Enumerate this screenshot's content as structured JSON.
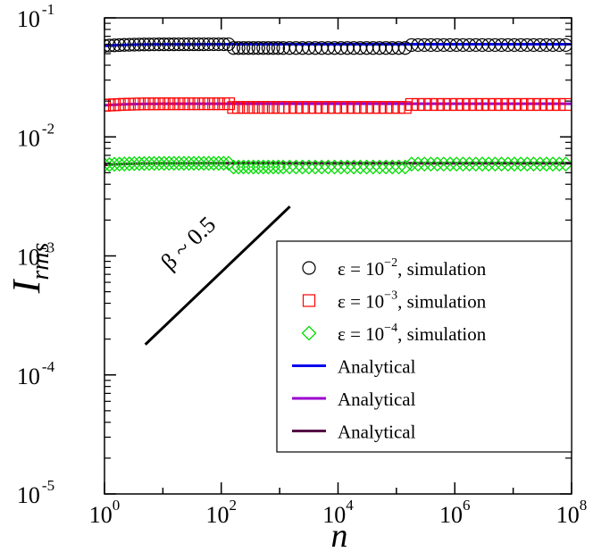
{
  "chart_data": {
    "type": "scatter",
    "xlabel": "n",
    "ylabel": "I",
    "ylabel_subscript": "rms",
    "x_scale": "log",
    "y_scale": "log",
    "xlim": [
      1,
      100000000
    ],
    "ylim": [
      1e-05,
      0.1
    ],
    "x_ticks": [
      {
        "value": 1,
        "base": "10",
        "exp": "0"
      },
      {
        "value": 100,
        "base": "10",
        "exp": "2"
      },
      {
        "value": 10000,
        "base": "10",
        "exp": "4"
      },
      {
        "value": 1000000,
        "base": "10",
        "exp": "6"
      },
      {
        "value": 100000000,
        "base": "10",
        "exp": "8"
      }
    ],
    "y_ticks": [
      {
        "value": 0.1,
        "base": "10",
        "exp": "-1"
      },
      {
        "value": 0.01,
        "base": "10",
        "exp": "-2"
      },
      {
        "value": 0.001,
        "base": "10",
        "exp": "-3"
      },
      {
        "value": 0.0001,
        "base": "10",
        "exp": "-4"
      },
      {
        "value": 1e-05,
        "base": "10",
        "exp": "-5"
      }
    ],
    "grid": false,
    "legend_position": "bottom-right",
    "legend": [
      {
        "marker": "circle",
        "color": "#000000",
        "prefix": "ε = 10",
        "exp": "−2",
        "suffix": ",  simulation"
      },
      {
        "marker": "square",
        "color": "#ff0000",
        "prefix": "ε = 10",
        "exp": "−3",
        "suffix": ",  simulation"
      },
      {
        "marker": "diamond",
        "color": "#00dd00",
        "prefix": "ε = 10",
        "exp": "−4",
        "suffix": ",  simulation"
      },
      {
        "marker": "line",
        "color": "#0000ee",
        "label": "Analytical"
      },
      {
        "marker": "line",
        "color": "#9900cc",
        "label": "Analytical"
      },
      {
        "marker": "line",
        "color": "#550044",
        "label": "Analytical"
      }
    ],
    "annotation": {
      "text": "β ~ 0.5",
      "x": [
        5,
        1500
      ],
      "y": [
        0.00018,
        0.0026
      ]
    },
    "series": [
      {
        "epsilon": 0.01,
        "kind": "simulation",
        "marker": "circle",
        "color": "#000000",
        "amplitude": 0.06,
        "x_max": 100000000
      },
      {
        "epsilon": 0.001,
        "kind": "simulation",
        "marker": "square",
        "color": "#ff0000",
        "amplitude": 0.019,
        "x_max": 100000000
      },
      {
        "epsilon": 0.0001,
        "kind": "simulation",
        "marker": "diamond",
        "color": "#00dd00",
        "amplitude": 0.006,
        "x_max": 100000000
      },
      {
        "epsilon": 0.01,
        "kind": "analytical",
        "color": "#0000ee",
        "amplitude": 0.06
      },
      {
        "epsilon": 0.001,
        "kind": "analytical",
        "color": "#9900cc",
        "amplitude": 0.019
      },
      {
        "epsilon": 0.0001,
        "kind": "analytical",
        "color": "#550044",
        "amplitude": 0.006
      }
    ]
  }
}
